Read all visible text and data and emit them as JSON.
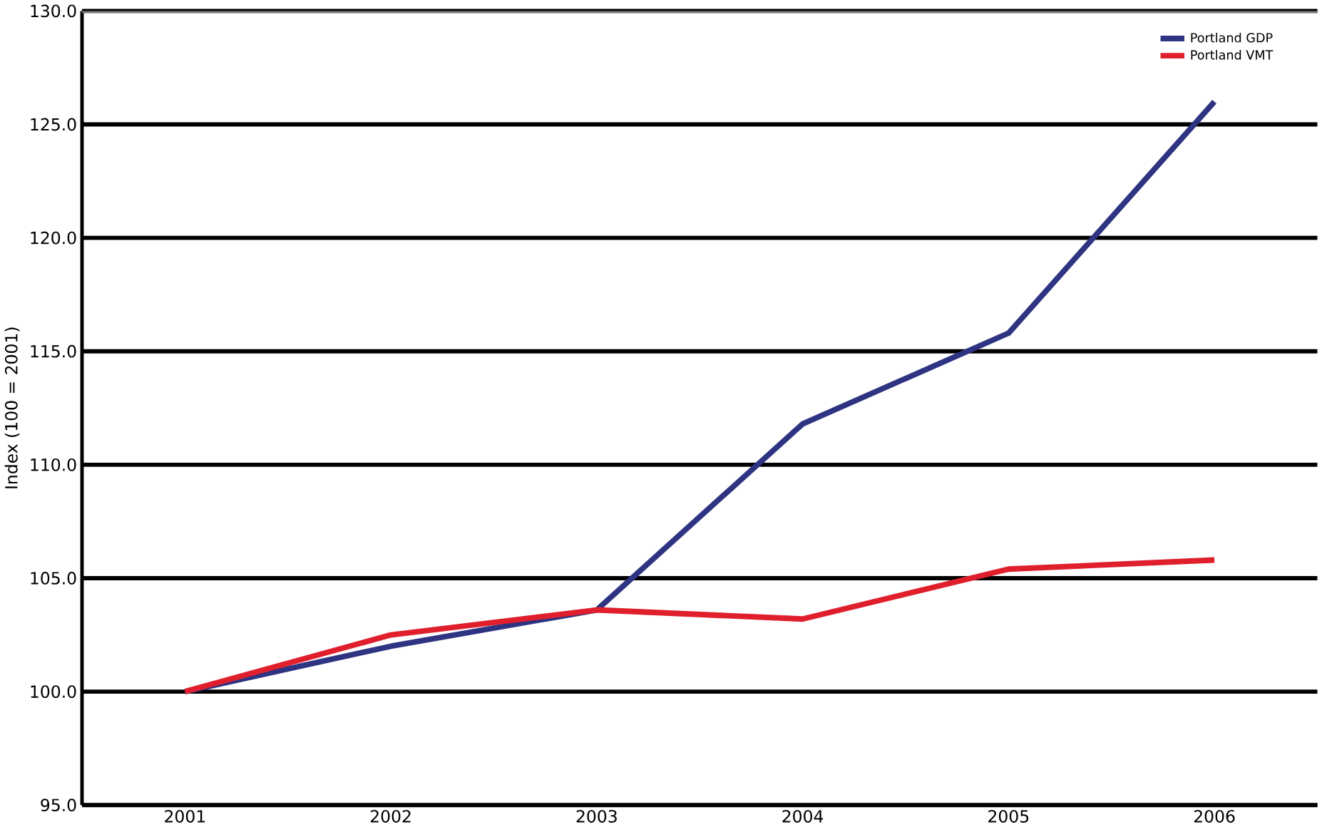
{
  "chart_data": {
    "type": "line",
    "ylabel": "Index (100 = 2001)",
    "categories": [
      "2001",
      "2002",
      "2003",
      "2004",
      "2005",
      "2006"
    ],
    "series": [
      {
        "name": "Portland GDP",
        "color": "#2e3382",
        "values": [
          100.0,
          102.0,
          103.6,
          111.8,
          115.8,
          126.0
        ]
      },
      {
        "name": "Portland VMT",
        "color": "#e01f2d",
        "values": [
          100.0,
          102.5,
          103.6,
          103.2,
          105.4,
          105.8
        ]
      }
    ],
    "ylim": [
      95,
      130
    ],
    "yticks": [
      {
        "value": 95,
        "label": "95.0"
      },
      {
        "value": 100,
        "label": "100.0"
      },
      {
        "value": 105,
        "label": "105.0"
      },
      {
        "value": 110,
        "label": "110.0"
      },
      {
        "value": 115,
        "label": "115.0"
      },
      {
        "value": 120,
        "label": "120.0"
      },
      {
        "value": 125,
        "label": "125.0"
      },
      {
        "value": 130,
        "label": "130.0"
      }
    ],
    "grid": "y",
    "legend": "top right",
    "marker": "none",
    "line_style": "solid"
  }
}
